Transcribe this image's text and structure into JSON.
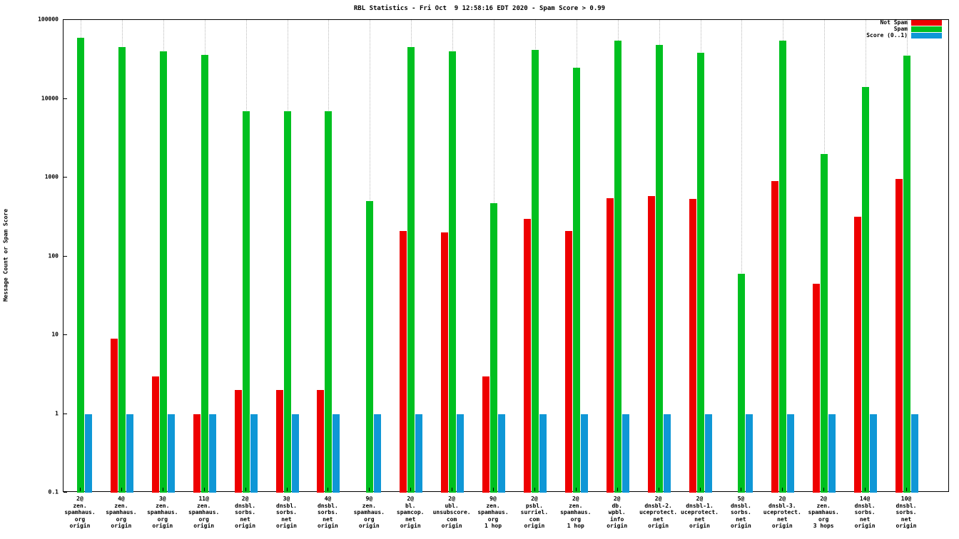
{
  "title": "RBL Statistics - Fri Oct  9 12:58:16 EDT 2020 - Spam Score > 0.99",
  "chart_data": {
    "type": "bar",
    "title": "RBL Statistics - Fri Oct  9 12:58:16 EDT 2020 - Spam Score > 0.99",
    "xlabel": "",
    "ylabel": "Message Count or Spam Score",
    "yscale": "log",
    "ylim": [
      0.1,
      100000
    ],
    "ytick_labels": [
      "100000",
      "10000",
      "1000",
      "100",
      "10",
      "1",
      "0.1"
    ],
    "grid": "vertical-dotted",
    "legend_position": "top-right",
    "categories": [
      [
        "2@",
        "zen.",
        "spamhaus.",
        "org",
        "origin"
      ],
      [
        "4@",
        "zen.",
        "spamhaus.",
        "org",
        "origin"
      ],
      [
        "3@",
        "zen.",
        "spamhaus.",
        "org",
        "origin"
      ],
      [
        "11@",
        "zen.",
        "spamhaus.",
        "org",
        "origin"
      ],
      [
        "2@",
        "dnsbl.",
        "sorbs.",
        "net",
        "origin"
      ],
      [
        "3@",
        "dnsbl.",
        "sorbs.",
        "net",
        "origin"
      ],
      [
        "4@",
        "dnsbl.",
        "sorbs.",
        "net",
        "origin"
      ],
      [
        "9@",
        "zen.",
        "spamhaus.",
        "org",
        "origin"
      ],
      [
        "2@",
        "bl.",
        "spamcop.",
        "net",
        "origin"
      ],
      [
        "2@",
        "ubl.",
        "unsubscore.",
        "com",
        "origin"
      ],
      [
        "9@",
        "zen.",
        "spamhaus.",
        "org",
        "1 hop"
      ],
      [
        "2@",
        "psbl.",
        "surriel.",
        "com",
        "origin"
      ],
      [
        "2@",
        "zen.",
        "spamhaus.",
        "org",
        "1 hop"
      ],
      [
        "2@",
        "db.",
        "wpbl.",
        "info",
        "origin"
      ],
      [
        "2@",
        "dnsbl-2.",
        "uceprotect.",
        "net",
        "origin"
      ],
      [
        "2@",
        "dnsbl-1.",
        "uceprotect.",
        "net",
        "origin"
      ],
      [
        "5@",
        "dnsbl.",
        "sorbs.",
        "net",
        "origin"
      ],
      [
        "2@",
        "dnsbl-3.",
        "uceprotect.",
        "net",
        "origin"
      ],
      [
        "2@",
        "zen.",
        "spamhaus.",
        "org",
        "3 hops"
      ],
      [
        "14@",
        "dnsbl.",
        "sorbs.",
        "net",
        "origin"
      ],
      [
        "10@",
        "dnsbl.",
        "sorbs.",
        "net",
        "origin"
      ]
    ],
    "series": [
      {
        "name": "Not Spam",
        "color": "#ee0000",
        "values": [
          null,
          9,
          3,
          1,
          2,
          2,
          2,
          null,
          210,
          200,
          3,
          300,
          210,
          550,
          580,
          530,
          null,
          900,
          45,
          320,
          950
        ]
      },
      {
        "name": "Spam",
        "color": "#00c020",
        "values": [
          60000,
          45000,
          40000,
          36000,
          7000,
          7000,
          7000,
          500,
          45000,
          40000,
          470,
          42000,
          25000,
          55000,
          48000,
          38000,
          60,
          55000,
          2000,
          14000,
          35000
        ]
      },
      {
        "name": "Score (0..1)",
        "color": "#0f97d6",
        "values": [
          1,
          1,
          1,
          1,
          1,
          1,
          1,
          1,
          1,
          1,
          1,
          1,
          1,
          1,
          1,
          1,
          1,
          1,
          1,
          1,
          1
        ]
      }
    ]
  }
}
